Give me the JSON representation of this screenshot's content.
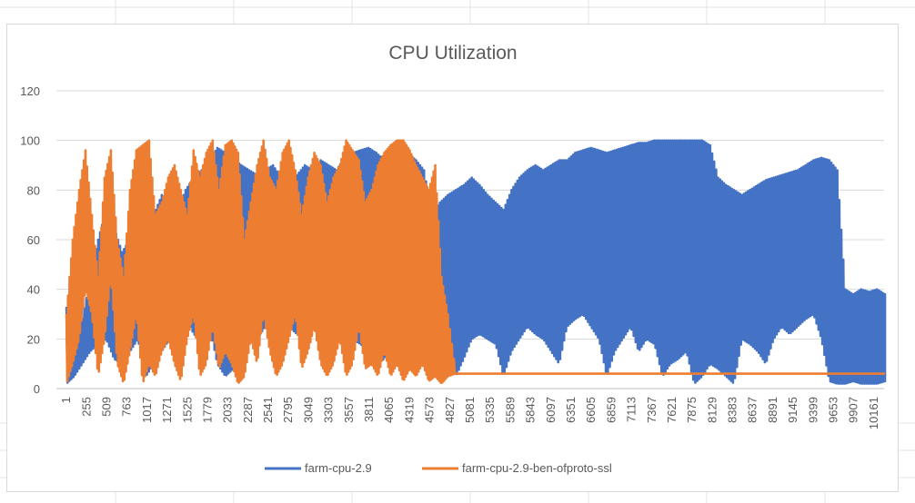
{
  "chart_data": {
    "type": "line",
    "title": "CPU Utilization",
    "xlabel": "",
    "ylabel": "",
    "ylim": [
      0,
      120
    ],
    "y_ticks": [
      0,
      20,
      40,
      60,
      80,
      100,
      120
    ],
    "x_tick_labels": [
      "1",
      "255",
      "509",
      "763",
      "1017",
      "1271",
      "1525",
      "1779",
      "2033",
      "2287",
      "2541",
      "2795",
      "3049",
      "3303",
      "3557",
      "3811",
      "4065",
      "4319",
      "4573",
      "4827",
      "5081",
      "5335",
      "5589",
      "5843",
      "6097",
      "6351",
      "6605",
      "6859",
      "7113",
      "7367",
      "7621",
      "7875",
      "8129",
      "8383",
      "8637",
      "8891",
      "9145",
      "9399",
      "9653",
      "9907",
      "10161"
    ],
    "grid": true,
    "legend_position": "bottom",
    "series": [
      {
        "name": "farm-cpu-2.9",
        "color": "#4472c4",
        "x": [
          1,
          100,
          200,
          300,
          400,
          500,
          600,
          700,
          800,
          900,
          1000,
          1100,
          1200,
          1300,
          1400,
          1500,
          1600,
          1700,
          1800,
          1900,
          2000,
          2100,
          2200,
          2300,
          2400,
          2500,
          2600,
          2700,
          2800,
          2900,
          3000,
          3100,
          3200,
          3300,
          3400,
          3500,
          3600,
          3700,
          3800,
          3900,
          4000,
          4100,
          4200,
          4300,
          4400,
          4500,
          4600,
          4700,
          4800,
          4900,
          5000,
          5100,
          5200,
          5300,
          5400,
          5500,
          5600,
          5700,
          5800,
          5900,
          6000,
          6100,
          6200,
          6300,
          6400,
          6500,
          6600,
          6700,
          6800,
          6900,
          7000,
          7100,
          7200,
          7300,
          7400,
          7500,
          7600,
          7700,
          7800,
          7900,
          8000,
          8100,
          8200,
          8300,
          8400,
          8500,
          8600,
          8700,
          8800,
          8900,
          9000,
          9100,
          9200,
          9300,
          9400,
          9500,
          9600,
          9700,
          9800,
          9900,
          10000,
          10100,
          10200,
          10300
        ],
        "y_max": [
          33,
          20,
          28,
          45,
          60,
          72,
          65,
          55,
          60,
          78,
          82,
          70,
          78,
          68,
          72,
          80,
          85,
          88,
          92,
          97,
          95,
          93,
          90,
          88,
          86,
          88,
          90,
          85,
          88,
          86,
          90,
          88,
          92,
          90,
          88,
          93,
          95,
          96,
          97,
          95,
          92,
          94,
          96,
          95,
          92,
          88,
          70,
          75,
          78,
          80,
          82,
          85,
          82,
          78,
          75,
          72,
          80,
          85,
          88,
          90,
          88,
          90,
          92,
          92,
          95,
          96,
          97,
          96,
          95,
          96,
          97,
          98,
          99,
          99,
          100,
          100,
          100,
          100,
          100,
          100,
          100,
          98,
          85,
          82,
          80,
          78,
          80,
          82,
          84,
          85,
          86,
          87,
          88,
          90,
          92,
          93,
          92,
          88,
          40,
          38,
          40,
          39,
          40,
          38
        ],
        "y_min": [
          2,
          5,
          10,
          15,
          18,
          20,
          12,
          10,
          15,
          20,
          5,
          10,
          15,
          20,
          25,
          30,
          22,
          20,
          25,
          10,
          5,
          8,
          12,
          18,
          20,
          25,
          30,
          28,
          25,
          22,
          20,
          25,
          30,
          28,
          25,
          22,
          20,
          18,
          15,
          10,
          12,
          18,
          20,
          25,
          30,
          20,
          8,
          10,
          15,
          5,
          12,
          20,
          22,
          20,
          18,
          5,
          15,
          20,
          25,
          22,
          20,
          15,
          10,
          25,
          28,
          30,
          25,
          20,
          5,
          15,
          20,
          25,
          15,
          20,
          18,
          5,
          10,
          12,
          15,
          2,
          5,
          10,
          8,
          5,
          2,
          20,
          18,
          15,
          10,
          20,
          25,
          22,
          25,
          28,
          30,
          20,
          3,
          2,
          2,
          3,
          2,
          2,
          2,
          3
        ]
      },
      {
        "name": "farm-cpu-2.9-ben-ofproto-ssl",
        "color": "#ed7d31",
        "x": [
          1,
          80,
          160,
          240,
          320,
          400,
          480,
          560,
          640,
          720,
          800,
          880,
          960,
          1040,
          1120,
          1200,
          1280,
          1360,
          1440,
          1520,
          1600,
          1680,
          1760,
          1840,
          1920,
          2000,
          2080,
          2160,
          2240,
          2320,
          2400,
          2480,
          2560,
          2640,
          2720,
          2800,
          2880,
          2960,
          3040,
          3120,
          3200,
          3280,
          3360,
          3440,
          3520,
          3600,
          3680,
          3760,
          3840,
          3920,
          4000,
          4080,
          4160,
          4240,
          4320,
          4400,
          4480,
          4560,
          4640,
          4720,
          4800,
          4900,
          5000,
          6000,
          7000,
          8000,
          9000,
          10000,
          10300
        ],
        "y_max": [
          30,
          60,
          80,
          96,
          70,
          45,
          85,
          96,
          60,
          45,
          80,
          96,
          98,
          100,
          70,
          75,
          85,
          90,
          80,
          70,
          96,
          85,
          95,
          100,
          80,
          98,
          100,
          95,
          60,
          75,
          90,
          100,
          85,
          80,
          95,
          100,
          88,
          70,
          85,
          95,
          90,
          75,
          85,
          90,
          100,
          96,
          92,
          75,
          80,
          90,
          95,
          98,
          100,
          100,
          96,
          90,
          85,
          80,
          90,
          45,
          30,
          6,
          6,
          6,
          6,
          6,
          6,
          6,
          6
        ],
        "y_min": [
          2,
          10,
          20,
          40,
          30,
          5,
          20,
          45,
          10,
          2,
          15,
          30,
          2,
          10,
          5,
          15,
          20,
          10,
          3,
          20,
          30,
          5,
          10,
          25,
          8,
          15,
          10,
          2,
          5,
          20,
          10,
          30,
          15,
          5,
          10,
          20,
          30,
          8,
          15,
          25,
          10,
          5,
          10,
          20,
          5,
          10,
          25,
          8,
          10,
          5,
          15,
          5,
          10,
          3,
          8,
          5,
          10,
          3,
          5,
          2,
          5,
          6,
          6,
          6,
          6,
          6,
          6,
          6,
          6
        ]
      }
    ]
  }
}
